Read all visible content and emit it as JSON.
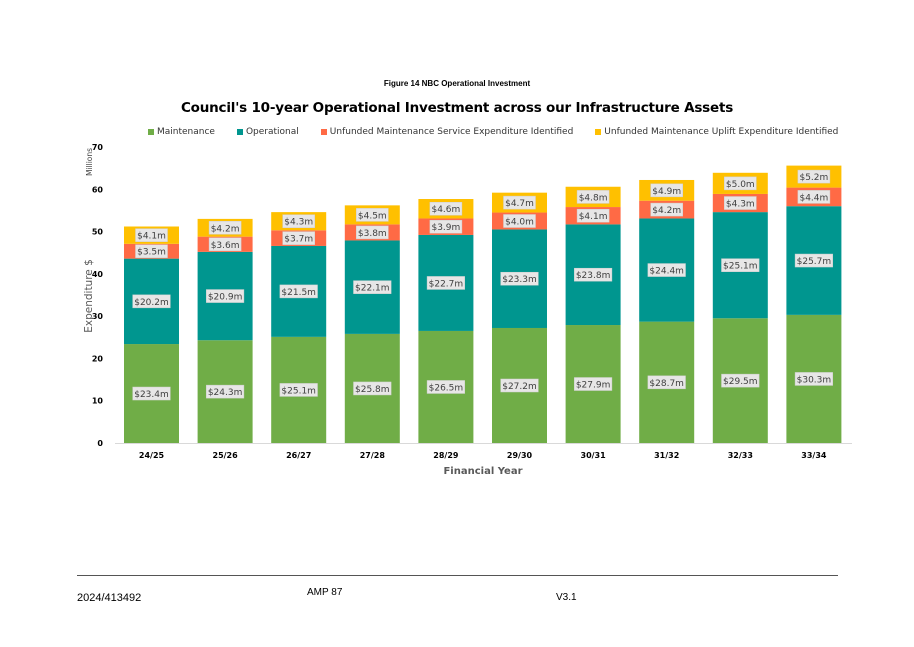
{
  "figure_caption": "Figure 14 NBC Operational Investment",
  "footer": {
    "doc_number": "2024/413492",
    "page_label": "AMP 87",
    "version": "V3.1"
  },
  "chart_data": {
    "type": "bar",
    "stacked": true,
    "title": "Council's 10-year Operational Investment across our Infrastructure Assets",
    "xlabel": "Financial Year",
    "ylabel": "Expenditure $",
    "yunit_label": "Millions",
    "ylim": [
      0,
      70
    ],
    "yticks": [
      0,
      10,
      20,
      30,
      40,
      50,
      60,
      70
    ],
    "grid": false,
    "legend_position": "top",
    "categories": [
      "24/25",
      "25/26",
      "26/27",
      "27/28",
      "28/29",
      "29/30",
      "30/31",
      "31/32",
      "32/33",
      "33/34"
    ],
    "series": [
      {
        "name": "Maintenance",
        "color": "#70AD47",
        "values": [
          23.4,
          24.3,
          25.1,
          25.8,
          26.5,
          27.2,
          27.9,
          28.7,
          29.5,
          30.3
        ],
        "labels": [
          "$23.4m",
          "$24.3m",
          "$25.1m",
          "$25.8m",
          "$26.5m",
          "$27.2m",
          "$27.9m",
          "$28.7m",
          "$29.5m",
          "$30.3m"
        ]
      },
      {
        "name": "Operational",
        "color": "#00968F",
        "values": [
          20.2,
          20.9,
          21.5,
          22.1,
          22.7,
          23.3,
          23.8,
          24.4,
          25.1,
          25.7
        ],
        "labels": [
          "$20.2m",
          "$20.9m",
          "$21.5m",
          "$22.1m",
          "$22.7m",
          "$23.3m",
          "$23.8m",
          "$24.4m",
          "$25.1m",
          "$25.7m"
        ]
      },
      {
        "name": "Unfunded Maintenance Service Expenditure Identified",
        "color": "#FF6A45",
        "values": [
          3.5,
          3.6,
          3.7,
          3.8,
          3.9,
          4.0,
          4.1,
          4.2,
          4.3,
          4.4
        ],
        "labels": [
          "$3.5m",
          "$3.6m",
          "$3.7m",
          "$3.8m",
          "$3.9m",
          "$4.0m",
          "$4.1m",
          "$4.2m",
          "$4.3m",
          "$4.4m"
        ]
      },
      {
        "name": "Unfunded Maintenance Uplift Expenditure Identified",
        "color": "#FFC000",
        "values": [
          4.1,
          4.2,
          4.3,
          4.5,
          4.6,
          4.7,
          4.8,
          4.9,
          5.0,
          5.2
        ],
        "labels": [
          "$4.1m",
          "$4.2m",
          "$4.3m",
          "$4.5m",
          "$4.6m",
          "$4.7m",
          "$4.8m",
          "$4.9m",
          "$5.0m",
          "$5.2m"
        ]
      }
    ]
  }
}
